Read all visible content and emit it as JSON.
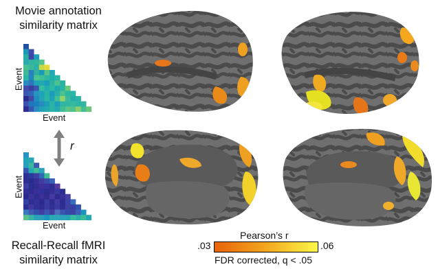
{
  "top_matrix": {
    "title_line1": "Movie annotation",
    "title_line2": "similarity matrix",
    "ylabel": "Event",
    "xlabel": "Event",
    "rows": [
      [
        "#1f4fa0"
      ],
      [
        "#1d97b8",
        "#3e4ba9"
      ],
      [
        "#27b0a3",
        "#3f44a6",
        "#1c9fbf"
      ],
      [
        "#2aa9b0",
        "#2fb59f",
        "#33b69b",
        "#55c48a"
      ],
      [
        "#46c090",
        "#3ab89a",
        "#2db1a6",
        "#c7d948",
        "#e8d93a"
      ],
      [
        "#40b996",
        "#2b7fbd",
        "#2fb29f",
        "#1b9bb8",
        "#57c389",
        "#22a7b3"
      ],
      [
        "#2ab6a1",
        "#2287bd",
        "#4bc38e",
        "#3dbe94",
        "#2eb6a0",
        "#1db0a8",
        "#27b7a3"
      ],
      [
        "#2e8bc1",
        "#2c75bc",
        "#1fa4b6",
        "#22aab0",
        "#1c9fbb",
        "#2eb3a1",
        "#4bc290",
        "#2ab5a3"
      ],
      [
        "#4549ab",
        "#3d3d9f",
        "#3a58b1",
        "#37bca0",
        "#22aeaf",
        "#2dbaa3",
        "#1eabb0",
        "#2ab4a2",
        "#6fc97a"
      ],
      [
        "#3f57b0",
        "#2f66b7",
        "#2696c0",
        "#1ea3b8",
        "#29b4a5",
        "#1c9cbb",
        "#2aafaa",
        "#4bc18e",
        "#2bb9a3",
        "#2ab6a2"
      ],
      [
        "#2b2b8a",
        "#4347a6",
        "#1b8dbf",
        "#22a3b6",
        "#2ab5a5",
        "#1ea2b7",
        "#43bf94",
        "#92d26a",
        "#3bb99c",
        "#25ada9",
        "#2db4a5"
      ],
      [
        "#3e4fae",
        "#2575bb",
        "#1a7fbd",
        "#2789bf",
        "#1ca0b8",
        "#2cb5a6",
        "#1e9fbb",
        "#32b4a2",
        "#2fb8a1",
        "#36b99f",
        "#2cb5a5",
        "#33b6a1"
      ],
      [
        "#2e2d8f",
        "#3b58b1",
        "#2a8cc1",
        "#20a3b7",
        "#24a9b0",
        "#2ab3a6",
        "#25a9b3",
        "#40bd95",
        "#5cc489",
        "#52c28b",
        "#8ccd72",
        "#44bd93",
        "#6bc77d"
      ]
    ]
  },
  "bottom_matrix": {
    "title_line1": "Recall-Recall fMRI",
    "title_line2": "similarity matrix",
    "ylabel": "Event",
    "xlabel": "Event",
    "rows": [
      [
        "#2594c0"
      ],
      [
        "#1fa6b3",
        "#24a6b4"
      ],
      [
        "#2a9fbf",
        "#3ab89c",
        "#3c58b0"
      ],
      [
        "#3a53ae",
        "#24aaaf",
        "#3cbd97",
        "#2ea1bb"
      ],
      [
        "#2d2f92",
        "#2a3a9e",
        "#3f3f9f",
        "#2f6ab8",
        "#3fbe94"
      ],
      [
        "#2d2e90",
        "#2a2d8c",
        "#362f95",
        "#433aa0",
        "#3a4aa8",
        "#3a62b4"
      ],
      [
        "#3b3da0",
        "#2b2d8c",
        "#322d90",
        "#402f97",
        "#3630a0",
        "#2f2d8e",
        "#5b3a9f"
      ],
      [
        "#312f93",
        "#2e2c8f",
        "#3a2f99",
        "#30309a",
        "#2c2d8e",
        "#362e95",
        "#3a3a9e",
        "#2f2d90"
      ],
      [
        "#2a2a8a",
        "#3b329c",
        "#2f2f92",
        "#3c2f97",
        "#302d8e",
        "#433aa3",
        "#2e2d8f",
        "#3b2f98",
        "#4741a5"
      ],
      [
        "#3242a3",
        "#2f2d90",
        "#35319a",
        "#2c2b8c",
        "#3a3aa0",
        "#2f2d8e",
        "#423ba3",
        "#2d2d8e",
        "#3a44a8",
        "#3a6db9"
      ],
      [
        "#2c2e91",
        "#3d3b9f",
        "#323096",
        "#2e2d8e",
        "#3a39a0",
        "#2f3192",
        "#3b3aa0",
        "#2e2f91",
        "#4040a2",
        "#3640a4",
        "#3253ad"
      ],
      [
        "#3a7bbe",
        "#4058b2",
        "#3350ab",
        "#3f3ea2",
        "#3b55b0",
        "#3f3ea1",
        "#4a6fb8",
        "#3c55b0",
        "#324ba8",
        "#3c44a6",
        "#3a5fb5",
        "#1d96bf"
      ],
      [
        "#5bc08c",
        "#39b6a0",
        "#2ba2bc",
        "#2d9fbd",
        "#1a98c0",
        "#27aab3",
        "#2ea5b8",
        "#2ba4b9",
        "#29a6b6",
        "#35bca1",
        "#2eb1a9",
        "#3dbd98",
        "#24a9b3"
      ]
    ]
  },
  "relation_symbol": "r",
  "colorbar": {
    "title": "Pearson’s r",
    "min_label": ".03",
    "max_label": ".06",
    "note": "FDR corrected, q < .05",
    "color_low": "#e8620a",
    "color_high": "#fff84a"
  },
  "brain": {
    "surface_color": "#5b5b5b",
    "sulci_color": "#4a4a4a",
    "gyri_color": "#7a7a7a"
  }
}
